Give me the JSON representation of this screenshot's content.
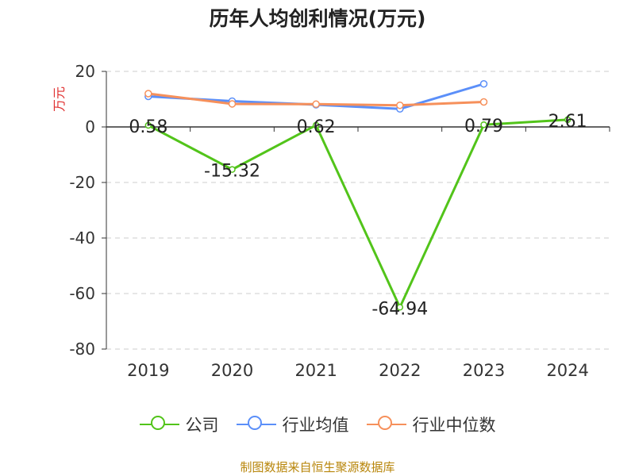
{
  "chart_data": {
    "type": "line",
    "title": "历年人均创利情况(万元)",
    "ylabel": "万元",
    "xlabel": "",
    "categories": [
      "2019",
      "2020",
      "2021",
      "2022",
      "2023",
      "2024"
    ],
    "ylim": [
      -80,
      20
    ],
    "yticks": [
      20,
      0,
      -20,
      -40,
      -60,
      -80
    ],
    "grid": true,
    "legend_position": "bottom",
    "series": [
      {
        "name": "公司",
        "color": "#52c41a",
        "values": [
          0.58,
          -15.32,
          0.62,
          -64.94,
          0.79,
          2.61
        ],
        "labels": [
          "0.58",
          "-15.32",
          "0.62",
          "-64.94",
          "0.79",
          "2.61"
        ]
      },
      {
        "name": "行业均值",
        "color": "#5b8ff9",
        "values": [
          11,
          9.3,
          8,
          6.5,
          15.5,
          null
        ]
      },
      {
        "name": "行业中位数",
        "color": "#f6905b",
        "values": [
          12,
          8.3,
          8.2,
          7.8,
          9,
          null
        ]
      }
    ]
  },
  "source": "制图数据来自恒生聚源数据库"
}
